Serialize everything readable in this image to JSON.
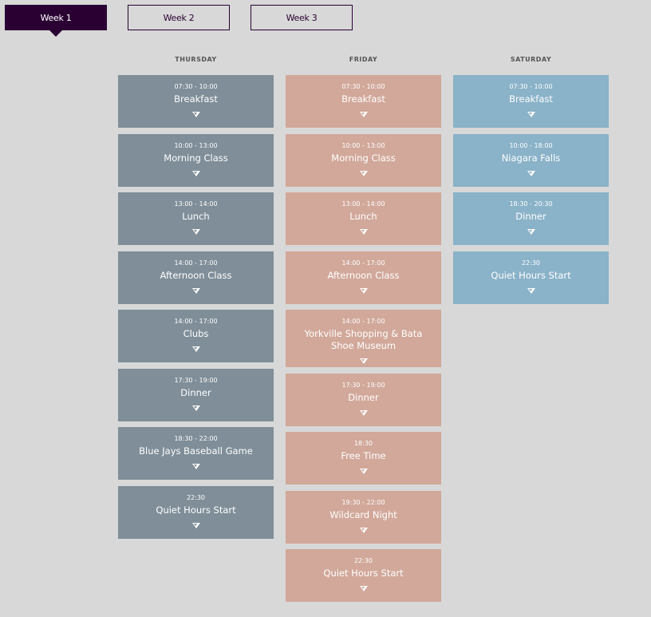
{
  "tabs": [
    {
      "label": "Week 1",
      "active": true
    },
    {
      "label": "Week 2"
    },
    {
      "label": "Week 3"
    }
  ],
  "colors": {
    "thursday": "#7f8e98",
    "friday": "#d1a89a",
    "saturday": "#8ab2c8",
    "tab": "#2a0033"
  },
  "days": [
    {
      "name": "THURSDAY",
      "events": [
        {
          "time": "07:30 - 10:00",
          "title": "Breakfast"
        },
        {
          "time": "10:00 - 13:00",
          "title": "Morning Class"
        },
        {
          "time": "13:00 - 14:00",
          "title": "Lunch"
        },
        {
          "time": "14:00 - 17:00",
          "title": "Afternoon Class"
        },
        {
          "time": "14:00 - 17:00",
          "title": "Clubs"
        },
        {
          "time": "17:30 - 19:00",
          "title": "Dinner"
        },
        {
          "time": "18:30 - 22:00",
          "title": "Blue Jays Baseball Game"
        },
        {
          "time": "22:30",
          "title": "Quiet Hours Start"
        }
      ]
    },
    {
      "name": "FRIDAY",
      "events": [
        {
          "time": "07:30 - 10:00",
          "title": "Breakfast"
        },
        {
          "time": "10:00 - 13:00",
          "title": "Morning Class"
        },
        {
          "time": "13:00 - 14:00",
          "title": "Lunch"
        },
        {
          "time": "14:00 - 17:00",
          "title": "Afternoon Class"
        },
        {
          "time": "14:00 - 17:00",
          "title": "Yorkville Shopping & Bata Shoe Museum"
        },
        {
          "time": "17:30 - 19:00",
          "title": "Dinner"
        },
        {
          "time": "18:30",
          "title": "Free Time"
        },
        {
          "time": "19:30 - 22:00",
          "title": "Wildcard Night"
        },
        {
          "time": "22:30",
          "title": "Quiet Hours Start"
        }
      ]
    },
    {
      "name": "SATURDAY",
      "events": [
        {
          "time": "07:30 - 10:00",
          "title": "Breakfast"
        },
        {
          "time": "10:00 - 18:00",
          "title": "Niagara Falls"
        },
        {
          "time": "18:30 - 20:30",
          "title": "Dinner"
        },
        {
          "time": "22:30",
          "title": "Quiet Hours Start"
        }
      ]
    }
  ]
}
